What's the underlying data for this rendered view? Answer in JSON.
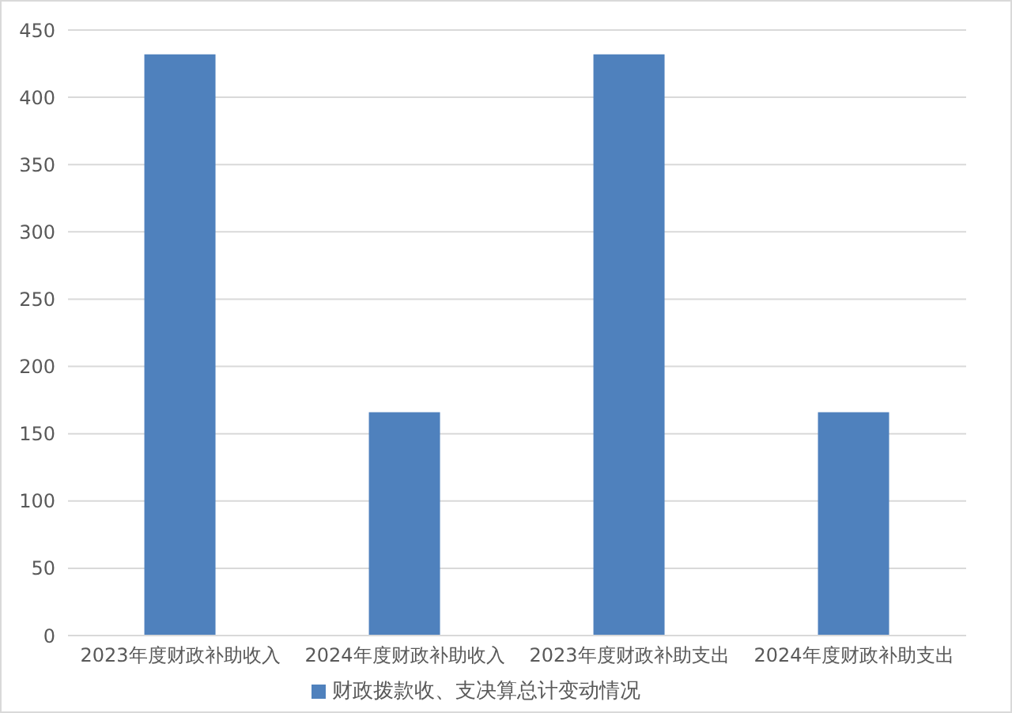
{
  "chart_data": {
    "type": "bar",
    "categories": [
      "2023年度财政补助收入",
      "2024年度财政补助收入",
      "2023年度财政补助支出",
      "2024年度财政补助支出"
    ],
    "series": [
      {
        "name": "财政拨款收、支决算总计变动情况",
        "color": "#4f81bd",
        "values": [
          432,
          166,
          432,
          166
        ]
      }
    ],
    "ylim": [
      0,
      450
    ],
    "yticks": [
      0,
      50,
      100,
      150,
      200,
      250,
      300,
      350,
      400,
      450
    ],
    "grid": "y",
    "legend": "bottom"
  }
}
